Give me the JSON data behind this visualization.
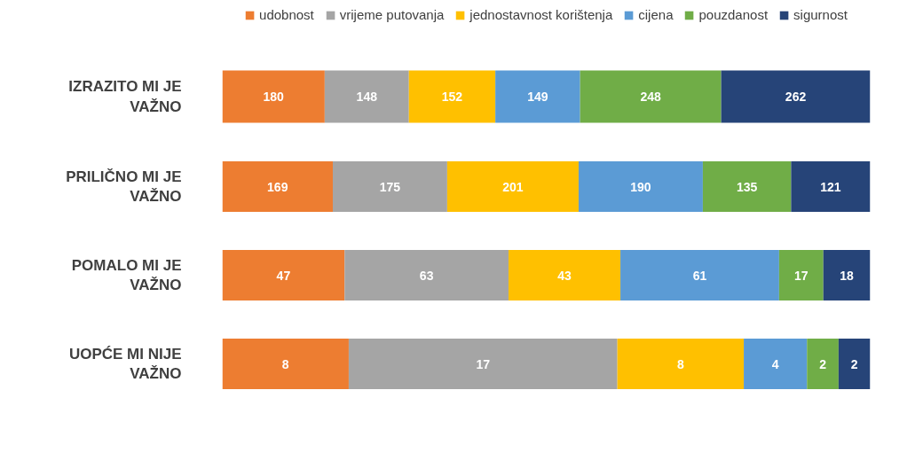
{
  "chart_data": [
    {
      "type": "bar",
      "orientation": "horizontal",
      "stacked": true,
      "data_labels": true,
      "tick_labels": "y",
      "grid": false,
      "legend": "top",
      "xlim": [
        0,
        1139
      ],
      "categories": [
        "IZRAZITO MI JE VAŽNO"
      ],
      "series": [
        {
          "name": "udobnost",
          "color": "#ed7d31",
          "values": [
            180
          ]
        },
        {
          "name": "vrijeme putovanja",
          "color": "#a5a5a5",
          "values": [
            148
          ]
        },
        {
          "name": "jednostavnost korištenja",
          "color": "#ffc000",
          "values": [
            152
          ]
        },
        {
          "name": "cijena",
          "color": "#5b9bd5",
          "values": [
            149
          ]
        },
        {
          "name": "pouzdanost",
          "color": "#70ad47",
          "values": [
            248
          ]
        },
        {
          "name": "sigurnost",
          "color": "#264478",
          "values": [
            262
          ]
        }
      ]
    },
    {
      "type": "bar",
      "orientation": "horizontal",
      "stacked": true,
      "data_labels": true,
      "tick_labels": "y",
      "grid": false,
      "xlim": [
        0,
        991
      ],
      "categories": [
        "PRILIČNO MI JE VAŽNO"
      ],
      "series": [
        {
          "color": "#ed7d31",
          "values": [
            169
          ]
        },
        {
          "color": "#a5a5a5",
          "values": [
            175
          ]
        },
        {
          "color": "#ffc000",
          "values": [
            201
          ]
        },
        {
          "color": "#5b9bd5",
          "values": [
            190
          ]
        },
        {
          "color": "#70ad47",
          "values": [
            135
          ]
        },
        {
          "color": "#264478",
          "values": [
            121
          ]
        }
      ]
    },
    {
      "type": "bar",
      "orientation": "horizontal",
      "stacked": true,
      "data_labels": true,
      "tick_labels": "y",
      "grid": false,
      "xlim": [
        0,
        249
      ],
      "categories": [
        "POMALO MI JE VAŽNO"
      ],
      "series": [
        {
          "color": "#ed7d31",
          "values": [
            47
          ]
        },
        {
          "color": "#a5a5a5",
          "values": [
            63
          ]
        },
        {
          "color": "#ffc000",
          "values": [
            43
          ]
        },
        {
          "color": "#5b9bd5",
          "values": [
            61
          ]
        },
        {
          "color": "#70ad47",
          "values": [
            17
          ]
        },
        {
          "color": "#264478",
          "values": [
            18
          ]
        }
      ]
    },
    {
      "type": "bar",
      "orientation": "horizontal",
      "stacked": true,
      "data_labels": true,
      "tick_labels": "y",
      "grid": false,
      "xlim": [
        0,
        41
      ],
      "categories": [
        "UOPĆE MI NIJE VAŽNO"
      ],
      "series": [
        {
          "color": "#ed7d31",
          "values": [
            8
          ]
        },
        {
          "color": "#a5a5a5",
          "values": [
            17
          ]
        },
        {
          "color": "#ffc000",
          "values": [
            8
          ]
        },
        {
          "color": "#5b9bd5",
          "values": [
            4
          ]
        },
        {
          "color": "#70ad47",
          "values": [
            2
          ]
        },
        {
          "color": "#264478",
          "values": [
            2
          ]
        }
      ]
    }
  ]
}
